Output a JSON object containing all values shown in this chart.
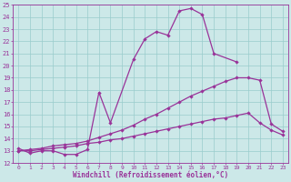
{
  "xlabel": "Windchill (Refroidissement éolien,°C)",
  "bg_color": "#cce8e8",
  "grid_color": "#99cccc",
  "line_color": "#993399",
  "xlim": [
    -0.5,
    23.5
  ],
  "ylim": [
    12,
    25
  ],
  "xticks": [
    0,
    1,
    2,
    3,
    4,
    5,
    6,
    7,
    8,
    9,
    10,
    11,
    12,
    13,
    14,
    15,
    16,
    17,
    18,
    19,
    20,
    21,
    22,
    23
  ],
  "yticks": [
    12,
    13,
    14,
    15,
    16,
    17,
    18,
    19,
    20,
    21,
    22,
    23,
    24,
    25
  ],
  "series1_x": [
    0,
    1,
    2,
    3,
    4,
    5,
    6,
    7,
    8,
    10,
    11,
    12,
    13,
    14,
    15,
    16,
    17,
    19
  ],
  "series1_y": [
    13.2,
    12.8,
    13.0,
    13.0,
    12.7,
    12.7,
    13.1,
    17.8,
    15.3,
    20.5,
    22.2,
    22.8,
    22.5,
    24.5,
    24.7,
    24.2,
    21.0,
    20.3
  ],
  "series2_x": [
    0,
    1,
    2,
    3,
    4,
    5,
    6,
    7,
    8,
    9,
    10,
    11,
    12,
    13,
    14,
    15,
    16,
    17,
    18,
    19,
    20,
    21,
    22,
    23
  ],
  "series2_y": [
    13.0,
    13.1,
    13.2,
    13.4,
    13.5,
    13.6,
    13.8,
    14.1,
    14.4,
    14.7,
    15.1,
    15.6,
    16.0,
    16.5,
    17.0,
    17.5,
    17.9,
    18.3,
    18.7,
    19.0,
    19.0,
    18.8,
    15.2,
    14.6
  ],
  "series3_x": [
    0,
    1,
    2,
    3,
    4,
    5,
    6,
    7,
    8,
    9,
    10,
    11,
    12,
    13,
    14,
    15,
    16,
    17,
    18,
    19,
    20,
    21,
    22,
    23
  ],
  "series3_y": [
    13.0,
    13.0,
    13.1,
    13.2,
    13.3,
    13.4,
    13.6,
    13.7,
    13.9,
    14.0,
    14.2,
    14.4,
    14.6,
    14.8,
    15.0,
    15.2,
    15.4,
    15.6,
    15.7,
    15.9,
    16.1,
    15.3,
    14.7,
    14.3
  ]
}
